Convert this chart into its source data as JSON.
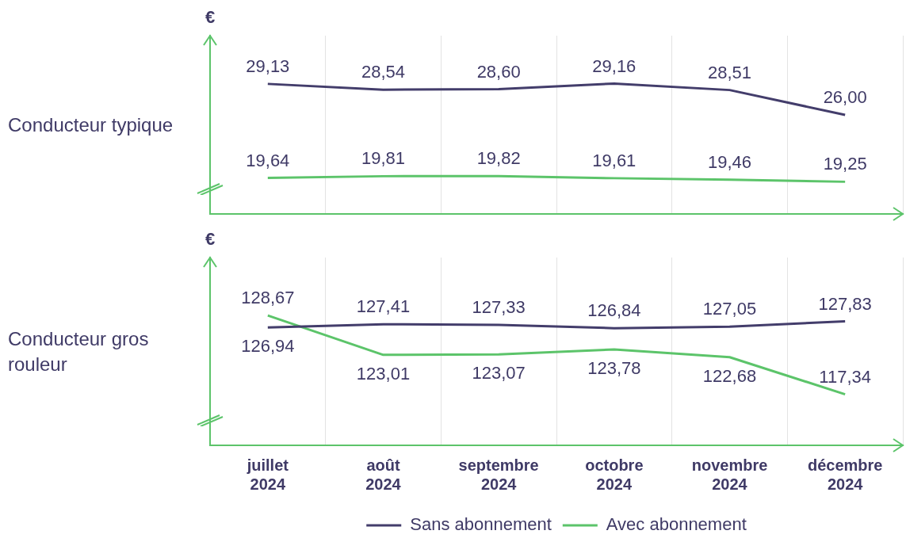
{
  "chart_data": [
    {
      "type": "line",
      "title": "Conducteur typique",
      "ylabel": "€",
      "categories": [
        null,
        null,
        null,
        null,
        null,
        null
      ],
      "ylim": [
        16,
        34
      ],
      "tick_labels": false,
      "grid": "x",
      "legend": false,
      "marker": "none",
      "series": [
        {
          "color": "#433d6b",
          "values": [
            29.13,
            28.54,
            28.6,
            29.16,
            28.51,
            26.0
          ],
          "value_labels": [
            "29,13",
            "28,54",
            "28,60",
            "29,16",
            "28,51",
            "26,00"
          ]
        },
        {
          "color": "#5cc46a",
          "values": [
            19.64,
            19.81,
            19.82,
            19.61,
            19.46,
            19.25
          ],
          "value_labels": [
            "19,64",
            "19,81",
            "19,82",
            "19,61",
            "19,46",
            "19,25"
          ]
        }
      ]
    },
    {
      "type": "line",
      "title": "Conducteur gros rouleur",
      "ylabel": "€",
      "categories": [
        "juillet 2024",
        "août 2024",
        "septembre 2024",
        "octobre 2024",
        "novembre 2024",
        "décembre 2024"
      ],
      "ylim": [
        110,
        137
      ],
      "tick_labels": "x",
      "grid": "x",
      "legend": "bottom",
      "marker": "none",
      "series": [
        {
          "name": "Sans abonnement",
          "color": "#433d6b",
          "values": [
            126.94,
            127.41,
            127.33,
            126.84,
            127.05,
            127.83
          ],
          "value_labels": [
            "126,94",
            "127,41",
            "127,33",
            "126,84",
            "127,05",
            "127,83"
          ]
        },
        {
          "name": "Avec abonnement",
          "color": "#5cc46a",
          "values": [
            128.67,
            123.01,
            123.07,
            123.78,
            122.68,
            117.34
          ],
          "value_labels": [
            "128,67",
            "123,01",
            "123,07",
            "123,78",
            "122,68",
            "117,34"
          ]
        }
      ]
    }
  ]
}
